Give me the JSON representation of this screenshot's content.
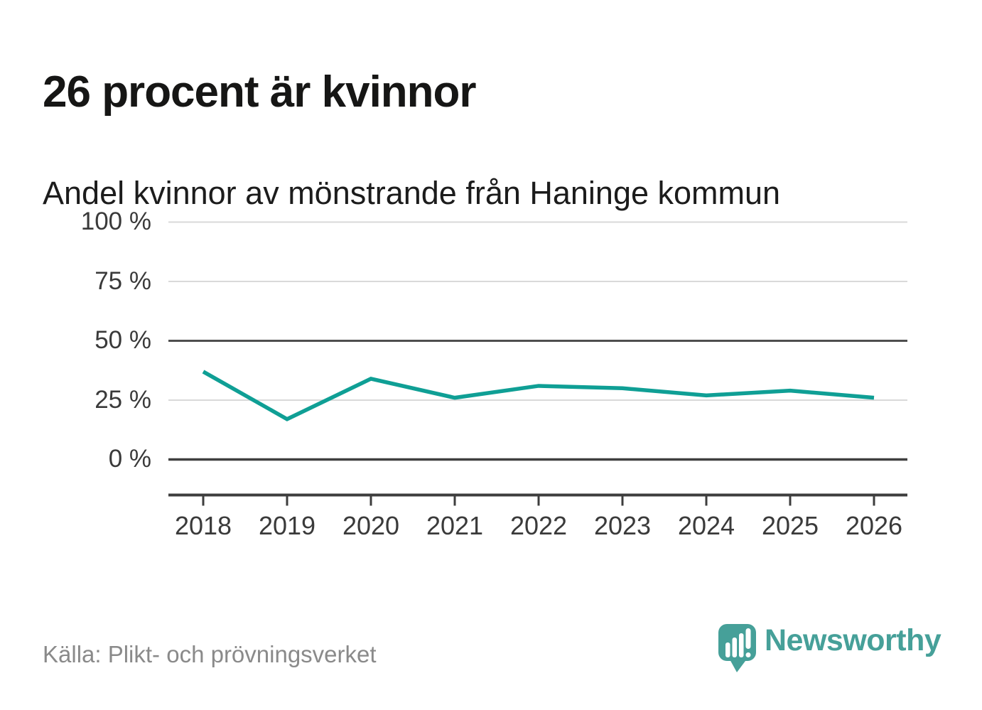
{
  "chart_data": {
    "type": "line",
    "title": "26 procent är kvinnor",
    "subtitle": "Andel kvinnor av mönstrande från Haninge kommun",
    "categories": [
      "2018",
      "2019",
      "2020",
      "2021",
      "2022",
      "2023",
      "2024",
      "2025",
      "2026"
    ],
    "series": [
      {
        "name": "Andel kvinnor av mönstrande",
        "values": [
          37,
          17,
          34,
          26,
          31,
          30,
          27,
          29,
          26
        ]
      }
    ],
    "unit": "%",
    "ylim": [
      0,
      100
    ],
    "yticks": [
      100,
      75,
      50,
      25,
      0
    ],
    "ytick_labels": [
      "100 %",
      "75 %",
      "50 %",
      "25 %",
      "0 %"
    ],
    "emphasized_yticks": [
      50,
      0
    ],
    "grid": "horizontal-only",
    "legend": "none",
    "line_color": "#0f9f95"
  },
  "footer": {
    "source": "Källa: Plikt- och prövningsverket",
    "brand_name": "Newsworthy",
    "brand_color": "#46a099"
  }
}
